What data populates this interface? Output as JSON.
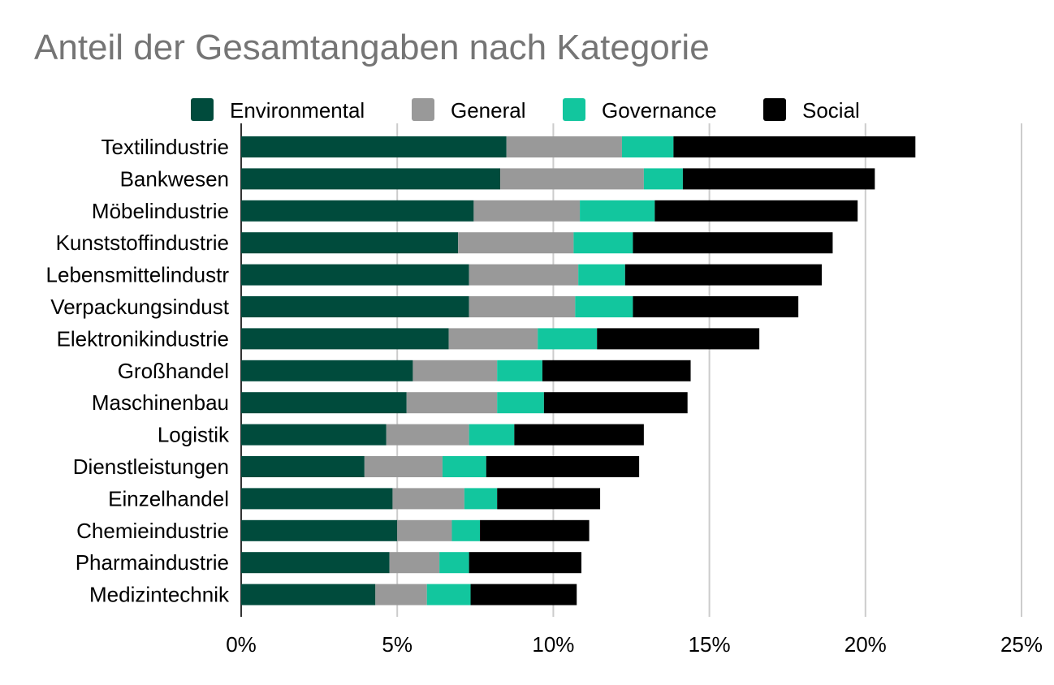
{
  "chart_data": {
    "type": "bar",
    "orientation": "horizontal",
    "stacked": true,
    "title": "Anteil der Gesamtangaben nach Kategorie",
    "xlabel": "",
    "ylabel": "",
    "xlim": [
      0,
      25
    ],
    "x_ticks": [
      "0%",
      "5%",
      "10%",
      "15%",
      "20%",
      "25%"
    ],
    "grid": "vertical",
    "legend_position": "top",
    "categories": [
      "Textilindustrie",
      "Bankwesen",
      "Möbelindustrie",
      "Kunststoffindustrie",
      "Lebensmittelindustr",
      "Verpackungsindust",
      "Elektronikindustrie",
      "Großhandel",
      "Maschinenbau",
      "Logistik",
      "Dienstleistungen",
      "Einzelhandel",
      "Chemieindustrie",
      "Pharmaindustrie",
      "Medizintechnik"
    ],
    "series": [
      {
        "name": "Environmental",
        "color": "#004b3c",
        "values": [
          8.5,
          8.3,
          7.45,
          6.95,
          7.3,
          7.3,
          6.65,
          5.5,
          5.3,
          4.65,
          3.95,
          4.85,
          5.0,
          4.75,
          4.3
        ]
      },
      {
        "name": "General",
        "color": "#999999",
        "values": [
          3.7,
          4.6,
          3.4,
          3.7,
          3.5,
          3.4,
          2.85,
          2.7,
          2.9,
          2.65,
          2.5,
          2.3,
          1.75,
          1.6,
          1.65
        ]
      },
      {
        "name": "Governance",
        "color": "#12c69e",
        "values": [
          1.65,
          1.25,
          2.4,
          1.9,
          1.5,
          1.85,
          1.9,
          1.45,
          1.5,
          1.45,
          1.4,
          1.05,
          0.9,
          0.95,
          1.4
        ]
      },
      {
        "name": "Social",
        "color": "#000000",
        "values": [
          7.75,
          6.15,
          6.5,
          6.4,
          6.3,
          5.3,
          5.2,
          4.75,
          4.6,
          4.15,
          4.9,
          3.3,
          3.5,
          3.6,
          3.4
        ]
      }
    ]
  }
}
